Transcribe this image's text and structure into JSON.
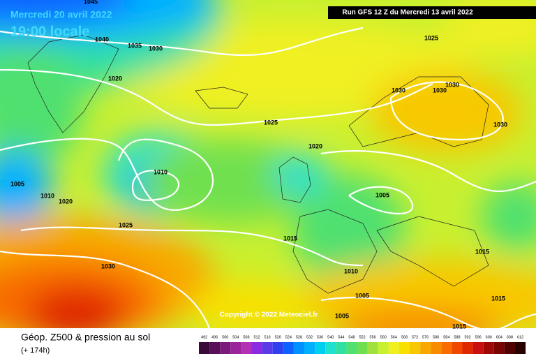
{
  "header": {
    "date": "Mercredi 20 avril 2022",
    "time": "19:00 locale",
    "run": "Run GFS 12 Z du Mercredi 13 avril 2022"
  },
  "copyright": "Copyright © 2022 Meteociel.fr",
  "footer": {
    "title": "Géop. Z500 & pression au sol",
    "lead": "(+ 174h)"
  },
  "isobar_labels": [
    1045,
    1040,
    1035,
    1030,
    1020,
    1025,
    1030,
    1030,
    1030,
    1030,
    1025,
    1020,
    1010,
    1005,
    1010,
    1020,
    1025,
    1005,
    1015,
    1015,
    1030,
    1010,
    1005,
    1015,
    1005,
    1015
  ],
  "scale": {
    "values": [
      492,
      496,
      500,
      504,
      508,
      512,
      516,
      520,
      524,
      528,
      532,
      536,
      540,
      544,
      548,
      552,
      556,
      560,
      564,
      568,
      572,
      576,
      580,
      584,
      588,
      592,
      596,
      600,
      604,
      608,
      612
    ],
    "colors": [
      "#3b0a3b",
      "#5a0f5a",
      "#7a1a7a",
      "#9a259a",
      "#b430b4",
      "#8a2be2",
      "#5a3ae6",
      "#3040f0",
      "#1060ff",
      "#0090ff",
      "#00b0ff",
      "#00d0f0",
      "#20e0d0",
      "#30e0a0",
      "#50e070",
      "#70e050",
      "#a0e040",
      "#c8f030",
      "#f0f020",
      "#f8e000",
      "#f8c800",
      "#f8a800",
      "#f88c00",
      "#f86c00",
      "#f04800",
      "#e02800",
      "#c81010",
      "#a00808",
      "#780404",
      "#500202",
      "#280000"
    ]
  }
}
